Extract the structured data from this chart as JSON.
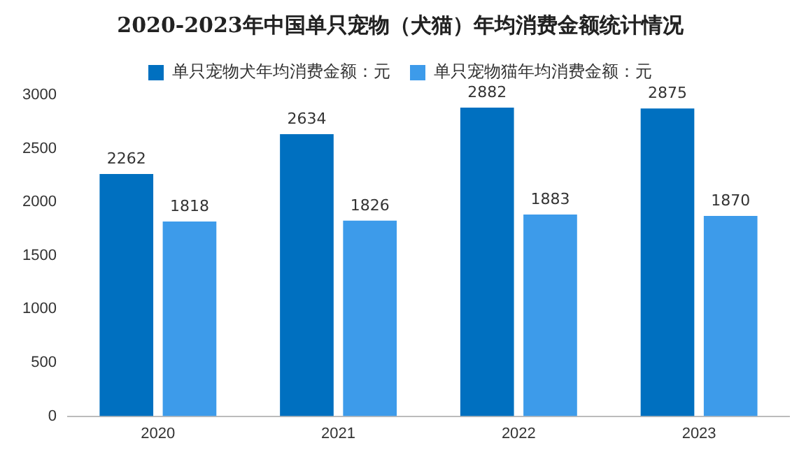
{
  "chart_data": {
    "type": "bar",
    "title": "2020-2023年中国单只宠物（犬猫）年均消费金额统计情况",
    "categories": [
      "2020",
      "2021",
      "2022",
      "2023"
    ],
    "series": [
      {
        "name": "单只宠物犬年均消费金额：元",
        "color": "#0070c0",
        "values": [
          2262,
          2634,
          2882,
          2875
        ]
      },
      {
        "name": "单只宠物猫年均消费金额：元",
        "color": "#3d9bea",
        "values": [
          1818,
          1826,
          1883,
          1870
        ]
      }
    ],
    "ylim": [
      0,
      3000
    ],
    "yticks": [
      0,
      500,
      1000,
      1500,
      2000,
      2500,
      3000
    ],
    "grid": false,
    "legend": "top",
    "data_labels": true
  }
}
